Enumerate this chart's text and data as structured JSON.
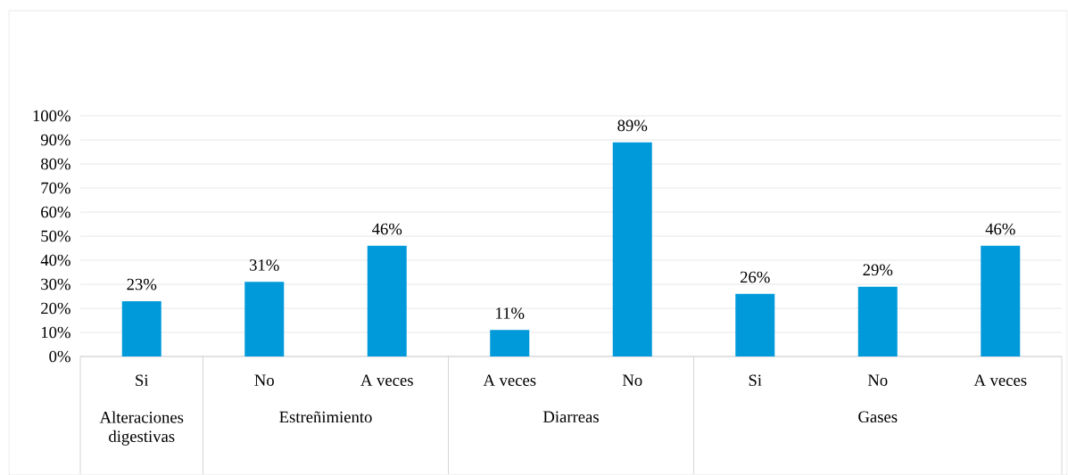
{
  "chart_data": {
    "type": "bar",
    "categories": [
      "Si",
      "No",
      "A veces",
      "A veces",
      "No",
      "Si",
      "No",
      "A veces"
    ],
    "values": [
      23,
      31,
      46,
      11,
      89,
      26,
      29,
      46
    ],
    "value_labels": [
      "23%",
      "31%",
      "46%",
      "11%",
      "89%",
      "26%",
      "29%",
      "46%"
    ],
    "color": "#009ada",
    "ylim": [
      0,
      100
    ],
    "yticks": [
      {
        "value": 0,
        "label": "0%"
      },
      {
        "value": 10,
        "label": "10%"
      },
      {
        "value": 20,
        "label": "20%"
      },
      {
        "value": 30,
        "label": "30%"
      },
      {
        "value": 40,
        "label": "40%"
      },
      {
        "value": 50,
        "label": "50%"
      },
      {
        "value": 60,
        "label": "60%"
      },
      {
        "value": 70,
        "label": "70%"
      },
      {
        "value": 80,
        "label": "80%"
      },
      {
        "value": 90,
        "label": "90%"
      },
      {
        "value": 100,
        "label": "100%"
      }
    ],
    "grid": "y",
    "annotations": [
      "Alteraciones digestivas",
      "Estreñimiento",
      "Diarreas",
      "Gases"
    ]
  }
}
